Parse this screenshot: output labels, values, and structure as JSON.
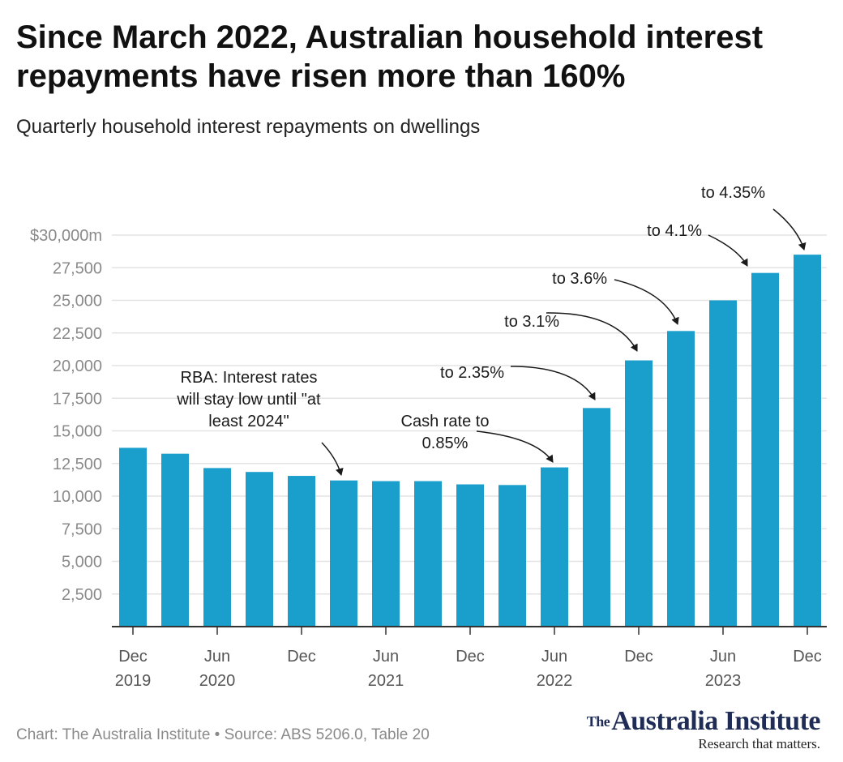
{
  "title": "Since March 2022, Australian household interest repayments have risen more than 160%",
  "subtitle": "Quarterly household interest repayments on dwellings",
  "footer": {
    "credit": "Chart: The Australia Institute",
    "source": "• Source: ABS 5206.0, Table 20"
  },
  "logo": {
    "the": "The",
    "name": "Australia Institute",
    "tagline": "Research that matters."
  },
  "colors": {
    "bar": "#1a9fcc",
    "grid": "#e3e3e3",
    "axis": "#333333"
  },
  "chart_data": {
    "type": "bar",
    "categories": [
      "Dec 2019",
      "Mar 2020",
      "Jun 2020",
      "Sep 2020",
      "Dec 2020",
      "Mar 2021",
      "Jun 2021",
      "Sep 2021",
      "Dec 2021",
      "Mar 2022",
      "Jun 2022",
      "Sep 2022",
      "Dec 2022",
      "Mar 2023",
      "Jun 2023",
      "Sep 2023",
      "Dec 2023"
    ],
    "values": [
      13700,
      13250,
      12150,
      11850,
      11550,
      11200,
      11150,
      11150,
      10900,
      10850,
      12200,
      16750,
      20400,
      22650,
      25000,
      27100,
      28500
    ],
    "ylim": [
      0,
      30000
    ],
    "yticks": [
      {
        "value": 2500,
        "label": "2,500"
      },
      {
        "value": 5000,
        "label": "5,000"
      },
      {
        "value": 7500,
        "label": "7,500"
      },
      {
        "value": 10000,
        "label": "10,000"
      },
      {
        "value": 12500,
        "label": "12,500"
      },
      {
        "value": 15000,
        "label": "15,000"
      },
      {
        "value": 17500,
        "label": "17,500"
      },
      {
        "value": 20000,
        "label": "20,000"
      },
      {
        "value": 22500,
        "label": "22,500"
      },
      {
        "value": 25000,
        "label": "25,000"
      },
      {
        "value": 27500,
        "label": "27,500"
      },
      {
        "value": 30000,
        "label": "$30,000m"
      }
    ],
    "xticks": [
      {
        "index": 0,
        "lines": [
          "Dec",
          "2019"
        ]
      },
      {
        "index": 2,
        "lines": [
          "Jun",
          "2020"
        ]
      },
      {
        "index": 4,
        "lines": [
          "Dec"
        ]
      },
      {
        "index": 6,
        "lines": [
          "Jun",
          "2021"
        ]
      },
      {
        "index": 8,
        "lines": [
          "Dec"
        ]
      },
      {
        "index": 10,
        "lines": [
          "Jun",
          "2022"
        ]
      },
      {
        "index": 12,
        "lines": [
          "Dec"
        ]
      },
      {
        "index": 14,
        "lines": [
          "Jun",
          "2023"
        ]
      },
      {
        "index": 16,
        "lines": [
          "Dec"
        ]
      }
    ],
    "grid": true,
    "legend": "none",
    "annotations": [
      {
        "target_index": 5,
        "lines": [
          "RBA: Interest rates",
          "will stay low until \"at",
          "least 2024\""
        ]
      },
      {
        "target_index": 10,
        "lines": [
          "Cash rate to",
          "0.85%"
        ]
      },
      {
        "target_index": 11,
        "lines": [
          "to 2.35%"
        ]
      },
      {
        "target_index": 12,
        "lines": [
          "to 3.1%"
        ]
      },
      {
        "target_index": 13,
        "lines": [
          "to 3.6%"
        ]
      },
      {
        "target_index": 15,
        "lines": [
          "to 4.1%"
        ]
      },
      {
        "target_index": 16,
        "lines": [
          "to 4.35%"
        ]
      }
    ]
  }
}
